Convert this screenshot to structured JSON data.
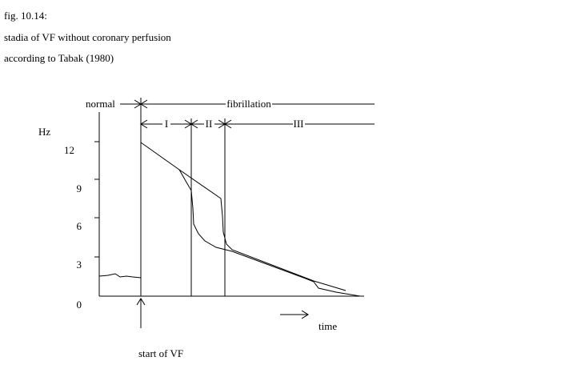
{
  "header": {
    "lines": [
      "fig. 10.14:",
      "stadia of VF without coronary perfusion",
      "according to Tabak (1980)"
    ]
  },
  "diagram": {
    "y_axis_label": "Hz",
    "y_ticks": [
      "12",
      "9",
      "6",
      "3",
      "0"
    ],
    "phases": {
      "normal": "normal",
      "fibrillation": "fibrillation",
      "stages": [
        "I",
        "II",
        "III"
      ]
    },
    "x_axis_label": "time",
    "marker_label": "start of VF"
  }
}
